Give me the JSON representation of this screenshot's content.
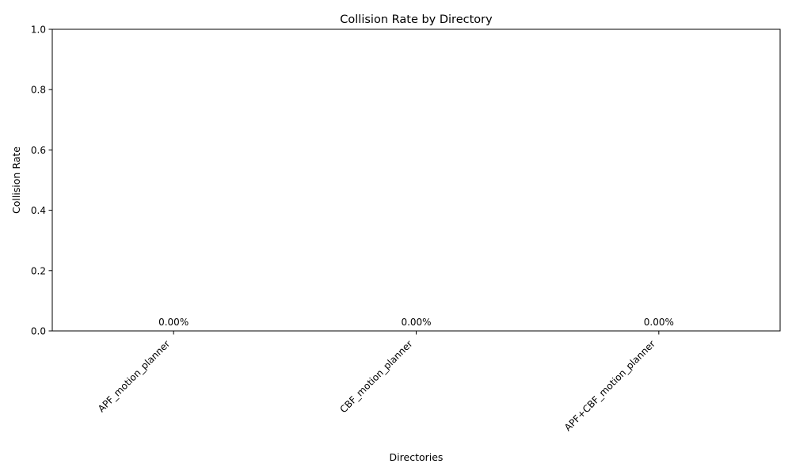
{
  "chart_data": {
    "type": "bar",
    "title": "Collision Rate by Directory",
    "xlabel": "Directories",
    "ylabel": "Collision Rate",
    "categories": [
      "APF_motion_planner",
      "CBF_motion_planner",
      "APF+CBF_motion_planner"
    ],
    "values": [
      0.0,
      0.0,
      0.0
    ],
    "data_labels": [
      "0.00%",
      "0.00%",
      "0.00%"
    ],
    "ylim": [
      0,
      1.0
    ],
    "yticks": [
      0.0,
      0.2,
      0.4,
      0.6,
      0.8,
      1.0
    ],
    "ytick_labels": [
      "0.0",
      "0.2",
      "0.4",
      "0.6",
      "0.8",
      "1.0"
    ],
    "grid": false,
    "legend": "none",
    "bar_color": "#1f77b4"
  }
}
